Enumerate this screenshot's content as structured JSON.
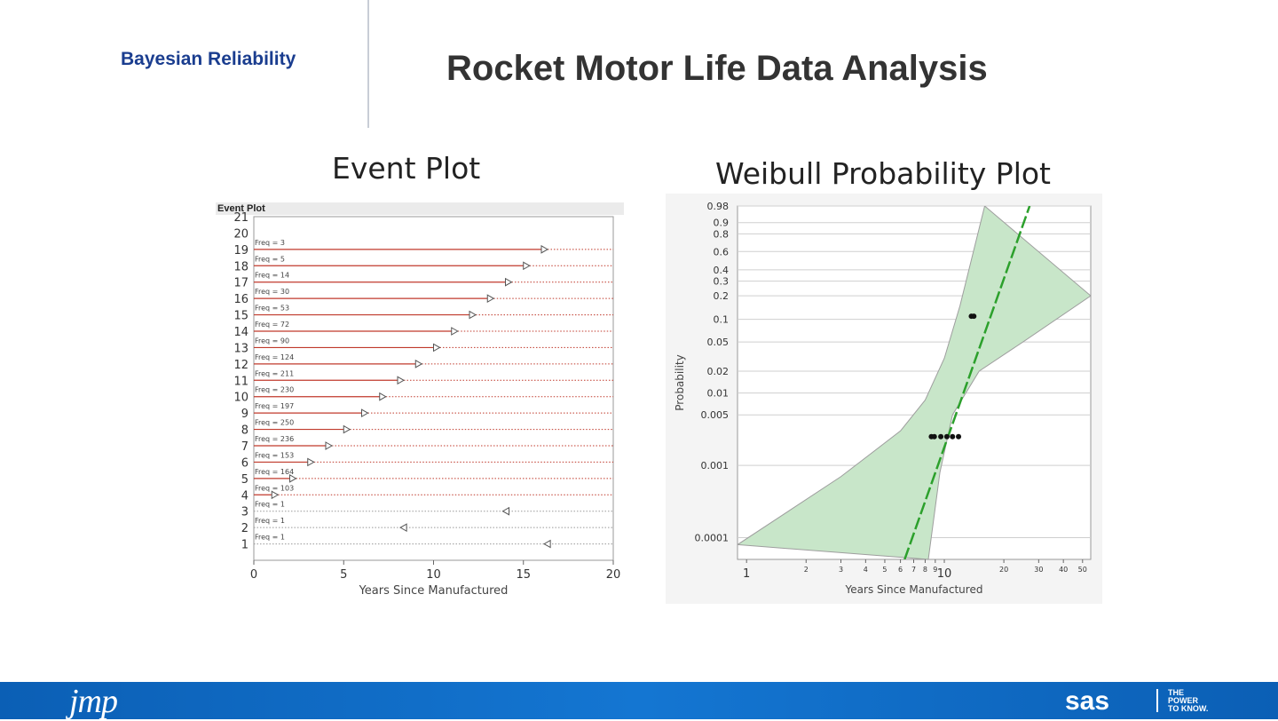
{
  "header": {
    "kicker": "Bayesian Reliability",
    "title": "Rocket Motor Life Data Analysis",
    "left_subtitle": "Event Plot",
    "right_subtitle": "Weibull Probability Plot"
  },
  "colors": {
    "kicker": "#1a3d8f",
    "footer": "#1476d2",
    "event_line": "#c0392b",
    "weibull_fit": "#2ca02c",
    "weibull_band": "#c8e6c9"
  },
  "footer": {
    "left_logo": "jmp",
    "right_logo": "sas",
    "tagline": [
      "THE",
      "POWER",
      "TO KNOW."
    ]
  },
  "chart_data": [
    {
      "type": "event",
      "panel_title": "Event Plot",
      "xlabel": "Years Since Manufactured",
      "ylabel": "",
      "xlim": [
        0,
        20
      ],
      "ylim": [
        0,
        21
      ],
      "xticks": [
        0,
        5,
        10,
        15,
        20
      ],
      "yticks": [
        1,
        2,
        3,
        4,
        5,
        6,
        7,
        8,
        9,
        10,
        11,
        12,
        13,
        14,
        15,
        16,
        17,
        18,
        19,
        20,
        21
      ],
      "events": [
        {
          "row": 19,
          "label": "Freq = 3",
          "start": 0,
          "end": 16,
          "censor": "right"
        },
        {
          "row": 18,
          "label": "Freq = 5",
          "start": 0,
          "end": 15,
          "censor": "right"
        },
        {
          "row": 17,
          "label": "Freq = 14",
          "start": 0,
          "end": 14,
          "censor": "right"
        },
        {
          "row": 16,
          "label": "Freq = 30",
          "start": 0,
          "end": 13,
          "censor": "right"
        },
        {
          "row": 15,
          "label": "Freq = 53",
          "start": 0,
          "end": 12,
          "censor": "right"
        },
        {
          "row": 14,
          "label": "Freq = 72",
          "start": 0,
          "end": 11,
          "censor": "right"
        },
        {
          "row": 13,
          "label": "Freq = 90",
          "start": 0,
          "end": 10,
          "censor": "right"
        },
        {
          "row": 12,
          "label": "Freq = 124",
          "start": 0,
          "end": 9,
          "censor": "right"
        },
        {
          "row": 11,
          "label": "Freq = 211",
          "start": 0,
          "end": 8,
          "censor": "right"
        },
        {
          "row": 10,
          "label": "Freq = 230",
          "start": 0,
          "end": 7,
          "censor": "right"
        },
        {
          "row": 9,
          "label": "Freq = 197",
          "start": 0,
          "end": 6,
          "censor": "right"
        },
        {
          "row": 8,
          "label": "Freq = 250",
          "start": 0,
          "end": 5,
          "censor": "right"
        },
        {
          "row": 7,
          "label": "Freq = 236",
          "start": 0,
          "end": 4,
          "censor": "right"
        },
        {
          "row": 6,
          "label": "Freq = 153",
          "start": 0,
          "end": 3,
          "censor": "right"
        },
        {
          "row": 5,
          "label": "Freq = 164",
          "start": 0,
          "end": 2,
          "censor": "right"
        },
        {
          "row": 4,
          "label": "Freq = 103",
          "start": 0,
          "end": 1,
          "censor": "right"
        },
        {
          "row": 3,
          "label": "Freq = 1",
          "start": 0,
          "end": 14.2,
          "censor": "left"
        },
        {
          "row": 2,
          "label": "Freq = 1",
          "start": 0,
          "end": 8.5,
          "censor": "left"
        },
        {
          "row": 1,
          "label": "Freq = 1",
          "start": 0,
          "end": 16.5,
          "censor": "left"
        }
      ]
    },
    {
      "type": "scatter",
      "xlabel": "Years Since Manufactured",
      "ylabel": "Probability",
      "x_scale": "log",
      "xlim": [
        0.9,
        55
      ],
      "y_scale": "weibull",
      "ylim": [
        5e-05,
        0.98
      ],
      "xticks": [
        1,
        2,
        3,
        4,
        5,
        6,
        7,
        8,
        9,
        10,
        20,
        30,
        40,
        50
      ],
      "yticks": [
        0.98,
        0.9,
        0.8,
        0.6,
        0.4,
        0.3,
        0.2,
        0.1,
        0.05,
        0.02,
        0.01,
        0.005,
        0.001,
        0.0001
      ],
      "series": [
        {
          "points": [
            [
              13.7,
              0.11
            ],
            [
              14.1,
              0.11
            ],
            [
              8.6,
              0.0025
            ],
            [
              8.9,
              0.0025
            ],
            [
              9.6,
              0.0025
            ],
            [
              10.3,
              0.0025
            ],
            [
              11.0,
              0.0025
            ],
            [
              11.8,
              0.0025
            ]
          ]
        }
      ],
      "fit_line": [
        [
          6.3,
          5e-05
        ],
        [
          27.0,
          0.98
        ]
      ],
      "confidence_band": {
        "upper": [
          [
            0.9,
            8e-05
          ],
          [
            3,
            0.0007
          ],
          [
            6,
            0.003
          ],
          [
            8,
            0.008
          ],
          [
            10,
            0.03
          ],
          [
            12,
            0.15
          ],
          [
            16,
            0.98
          ]
        ],
        "lower": [
          [
            8.3,
            5e-05
          ],
          [
            9.5,
            0.0008
          ],
          [
            11,
            0.005
          ],
          [
            15,
            0.02
          ],
          [
            25,
            0.05
          ],
          [
            55,
            0.2
          ]
        ]
      }
    }
  ]
}
